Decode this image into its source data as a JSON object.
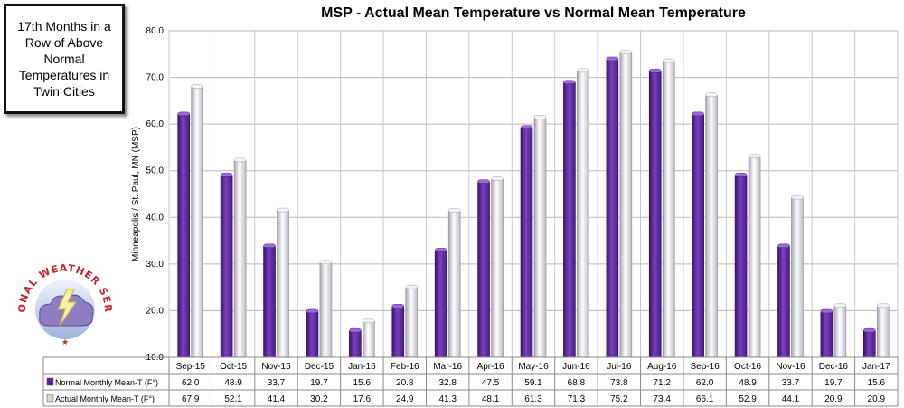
{
  "callout": {
    "text": "17th Months in a Row of Above Normal Temperatures in Twin Cities"
  },
  "logo": {
    "text": "NATIONAL WEATHER SERVICE"
  },
  "chart_data": {
    "type": "bar",
    "title": "MSP - Actual Mean Temperature vs Normal Mean Temperature",
    "ylabel": "Minneapolis / St. Paul, MN (MSP)",
    "ylim": [
      10,
      80
    ],
    "yticks": [
      "10.0",
      "20.0",
      "30.0",
      "40.0",
      "50.0",
      "60.0",
      "70.0",
      "80.0"
    ],
    "grid": true,
    "legend": "data-table",
    "categories": [
      "Sep-15",
      "Oct-15",
      "Nov-15",
      "Dec-15",
      "Jan-16",
      "Feb-16",
      "Mar-16",
      "Apr-16",
      "May-16",
      "Jun-16",
      "Jul-16",
      "Aug-16",
      "Sep-16",
      "Oct-16",
      "Nov-16",
      "Dec-16",
      "Jan-17"
    ],
    "series": [
      {
        "name": "Normal Monthly Mean-T (F°)",
        "color": "#6a2fa3",
        "values": [
          62.0,
          48.9,
          33.7,
          19.7,
          15.6,
          20.8,
          32.8,
          47.5,
          59.1,
          68.8,
          73.8,
          71.2,
          62.0,
          48.9,
          33.7,
          19.7,
          15.6
        ]
      },
      {
        "name": "Actual Monthly Mean-T (F°)",
        "color": "#d9d6e2",
        "values": [
          67.9,
          52.1,
          41.4,
          30.2,
          17.6,
          24.9,
          41.3,
          48.1,
          61.3,
          71.3,
          75.2,
          73.4,
          66.1,
          52.9,
          44.1,
          20.9,
          20.9
        ]
      }
    ]
  }
}
